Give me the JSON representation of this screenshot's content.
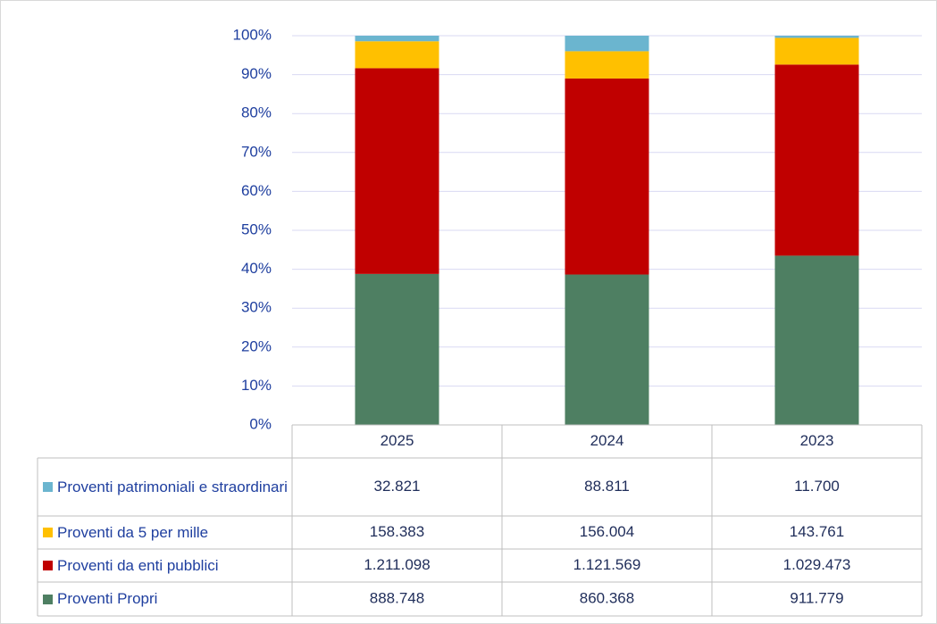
{
  "chart_data": {
    "type": "bar",
    "stacking": "percent",
    "categories": [
      "2025",
      "2024",
      "2023"
    ],
    "series": [
      {
        "name": "Proventi Propri",
        "color": "#4e7f62",
        "values": [
          888748,
          860368,
          911779
        ],
        "value_labels": [
          "888.748",
          "860.368",
          "911.779"
        ]
      },
      {
        "name": "Proventi da enti pubblici",
        "color": "#c00000",
        "values": [
          1211098,
          1121569,
          1029473
        ],
        "value_labels": [
          "1.211.098",
          "1.121.569",
          "1.029.473"
        ]
      },
      {
        "name": "Proventi da 5 per mille",
        "color": "#ffc000",
        "values": [
          158383,
          156004,
          143761
        ],
        "value_labels": [
          "158.383",
          "156.004",
          "143.761"
        ]
      },
      {
        "name": "Proventi patrimoniali e straordinari",
        "color": "#6bb5cf",
        "values": [
          32821,
          88811,
          11700
        ],
        "value_labels": [
          "32.821",
          "88.811",
          "11.700"
        ]
      }
    ],
    "ylim": [
      0,
      100
    ],
    "yticks": [
      {
        "value": 0,
        "label": "0%"
      },
      {
        "value": 10,
        "label": "10%"
      },
      {
        "value": 20,
        "label": "20%"
      },
      {
        "value": 30,
        "label": "30%"
      },
      {
        "value": 40,
        "label": "40%"
      },
      {
        "value": 50,
        "label": "50%"
      },
      {
        "value": 60,
        "label": "60%"
      },
      {
        "value": 70,
        "label": "70%"
      },
      {
        "value": 80,
        "label": "80%"
      },
      {
        "value": 90,
        "label": "90%"
      },
      {
        "value": 100,
        "label": "100%"
      }
    ],
    "grid": true,
    "data_table": true
  }
}
